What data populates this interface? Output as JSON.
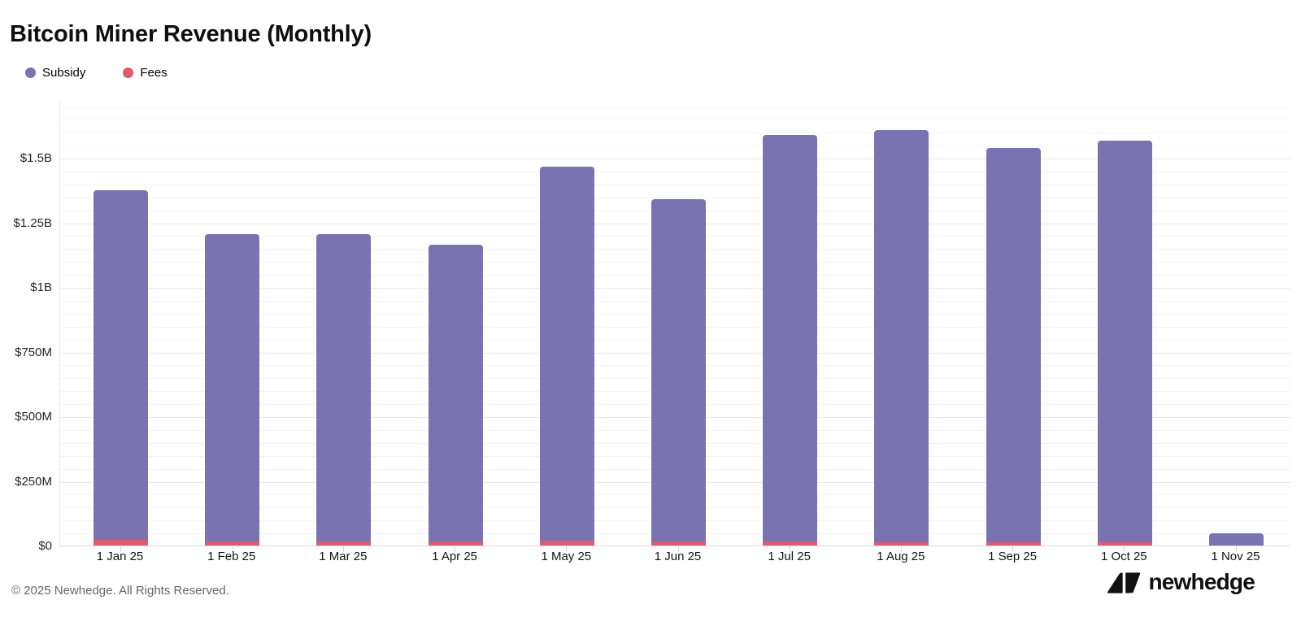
{
  "header": {
    "title": "Bitcoin Miner Revenue (Monthly)"
  },
  "legend": {
    "items": [
      {
        "id": "subsidy",
        "label": "Subsidy",
        "color": "#7a73b1"
      },
      {
        "id": "fees",
        "label": "Fees",
        "color": "#e2586e"
      }
    ]
  },
  "chart_data": {
    "type": "bar",
    "stacked": true,
    "title": "Bitcoin Miner Revenue (Monthly)",
    "unit": "USD (millions)",
    "categories": [
      "1 Jan 25",
      "1 Feb 25",
      "1 Mar 25",
      "1 Apr 25",
      "1 May 25",
      "1 Jun 25",
      "1 Jul 25",
      "1 Aug 25",
      "1 Sep 25",
      "1 Oct 25",
      "1 Nov 25"
    ],
    "series": [
      {
        "name": "Subsidy",
        "color": "#7a73b1",
        "values": [
          1352,
          1189,
          1189,
          1146,
          1446,
          1323,
          1573,
          1595,
          1525,
          1554,
          47
        ]
      },
      {
        "name": "Fees",
        "color": "#e2586e",
        "values": [
          22,
          17,
          17,
          16,
          19,
          16,
          16,
          13,
          13,
          13,
          1
        ]
      }
    ],
    "totals": [
      1374,
      1206,
      1206,
      1162,
      1465,
      1339,
      1589,
      1608,
      1538,
      1567,
      48
    ],
    "yaxis": {
      "max": 1726,
      "minor_step": 50,
      "major_step": 250,
      "ticks": [
        {
          "value": 0,
          "label": "$0"
        },
        {
          "value": 250,
          "label": "$250M"
        },
        {
          "value": 500,
          "label": "$500M"
        },
        {
          "value": 750,
          "label": "$750M"
        },
        {
          "value": 1000,
          "label": "$1B"
        },
        {
          "value": 1250,
          "label": "$1.25B"
        },
        {
          "value": 1500,
          "label": "$1.5B"
        }
      ]
    },
    "legend_position": "top-left",
    "grid": true
  },
  "footer": {
    "copyright": "© 2025 Newhedge. All Rights Reserved.",
    "brand": "newhedge"
  }
}
